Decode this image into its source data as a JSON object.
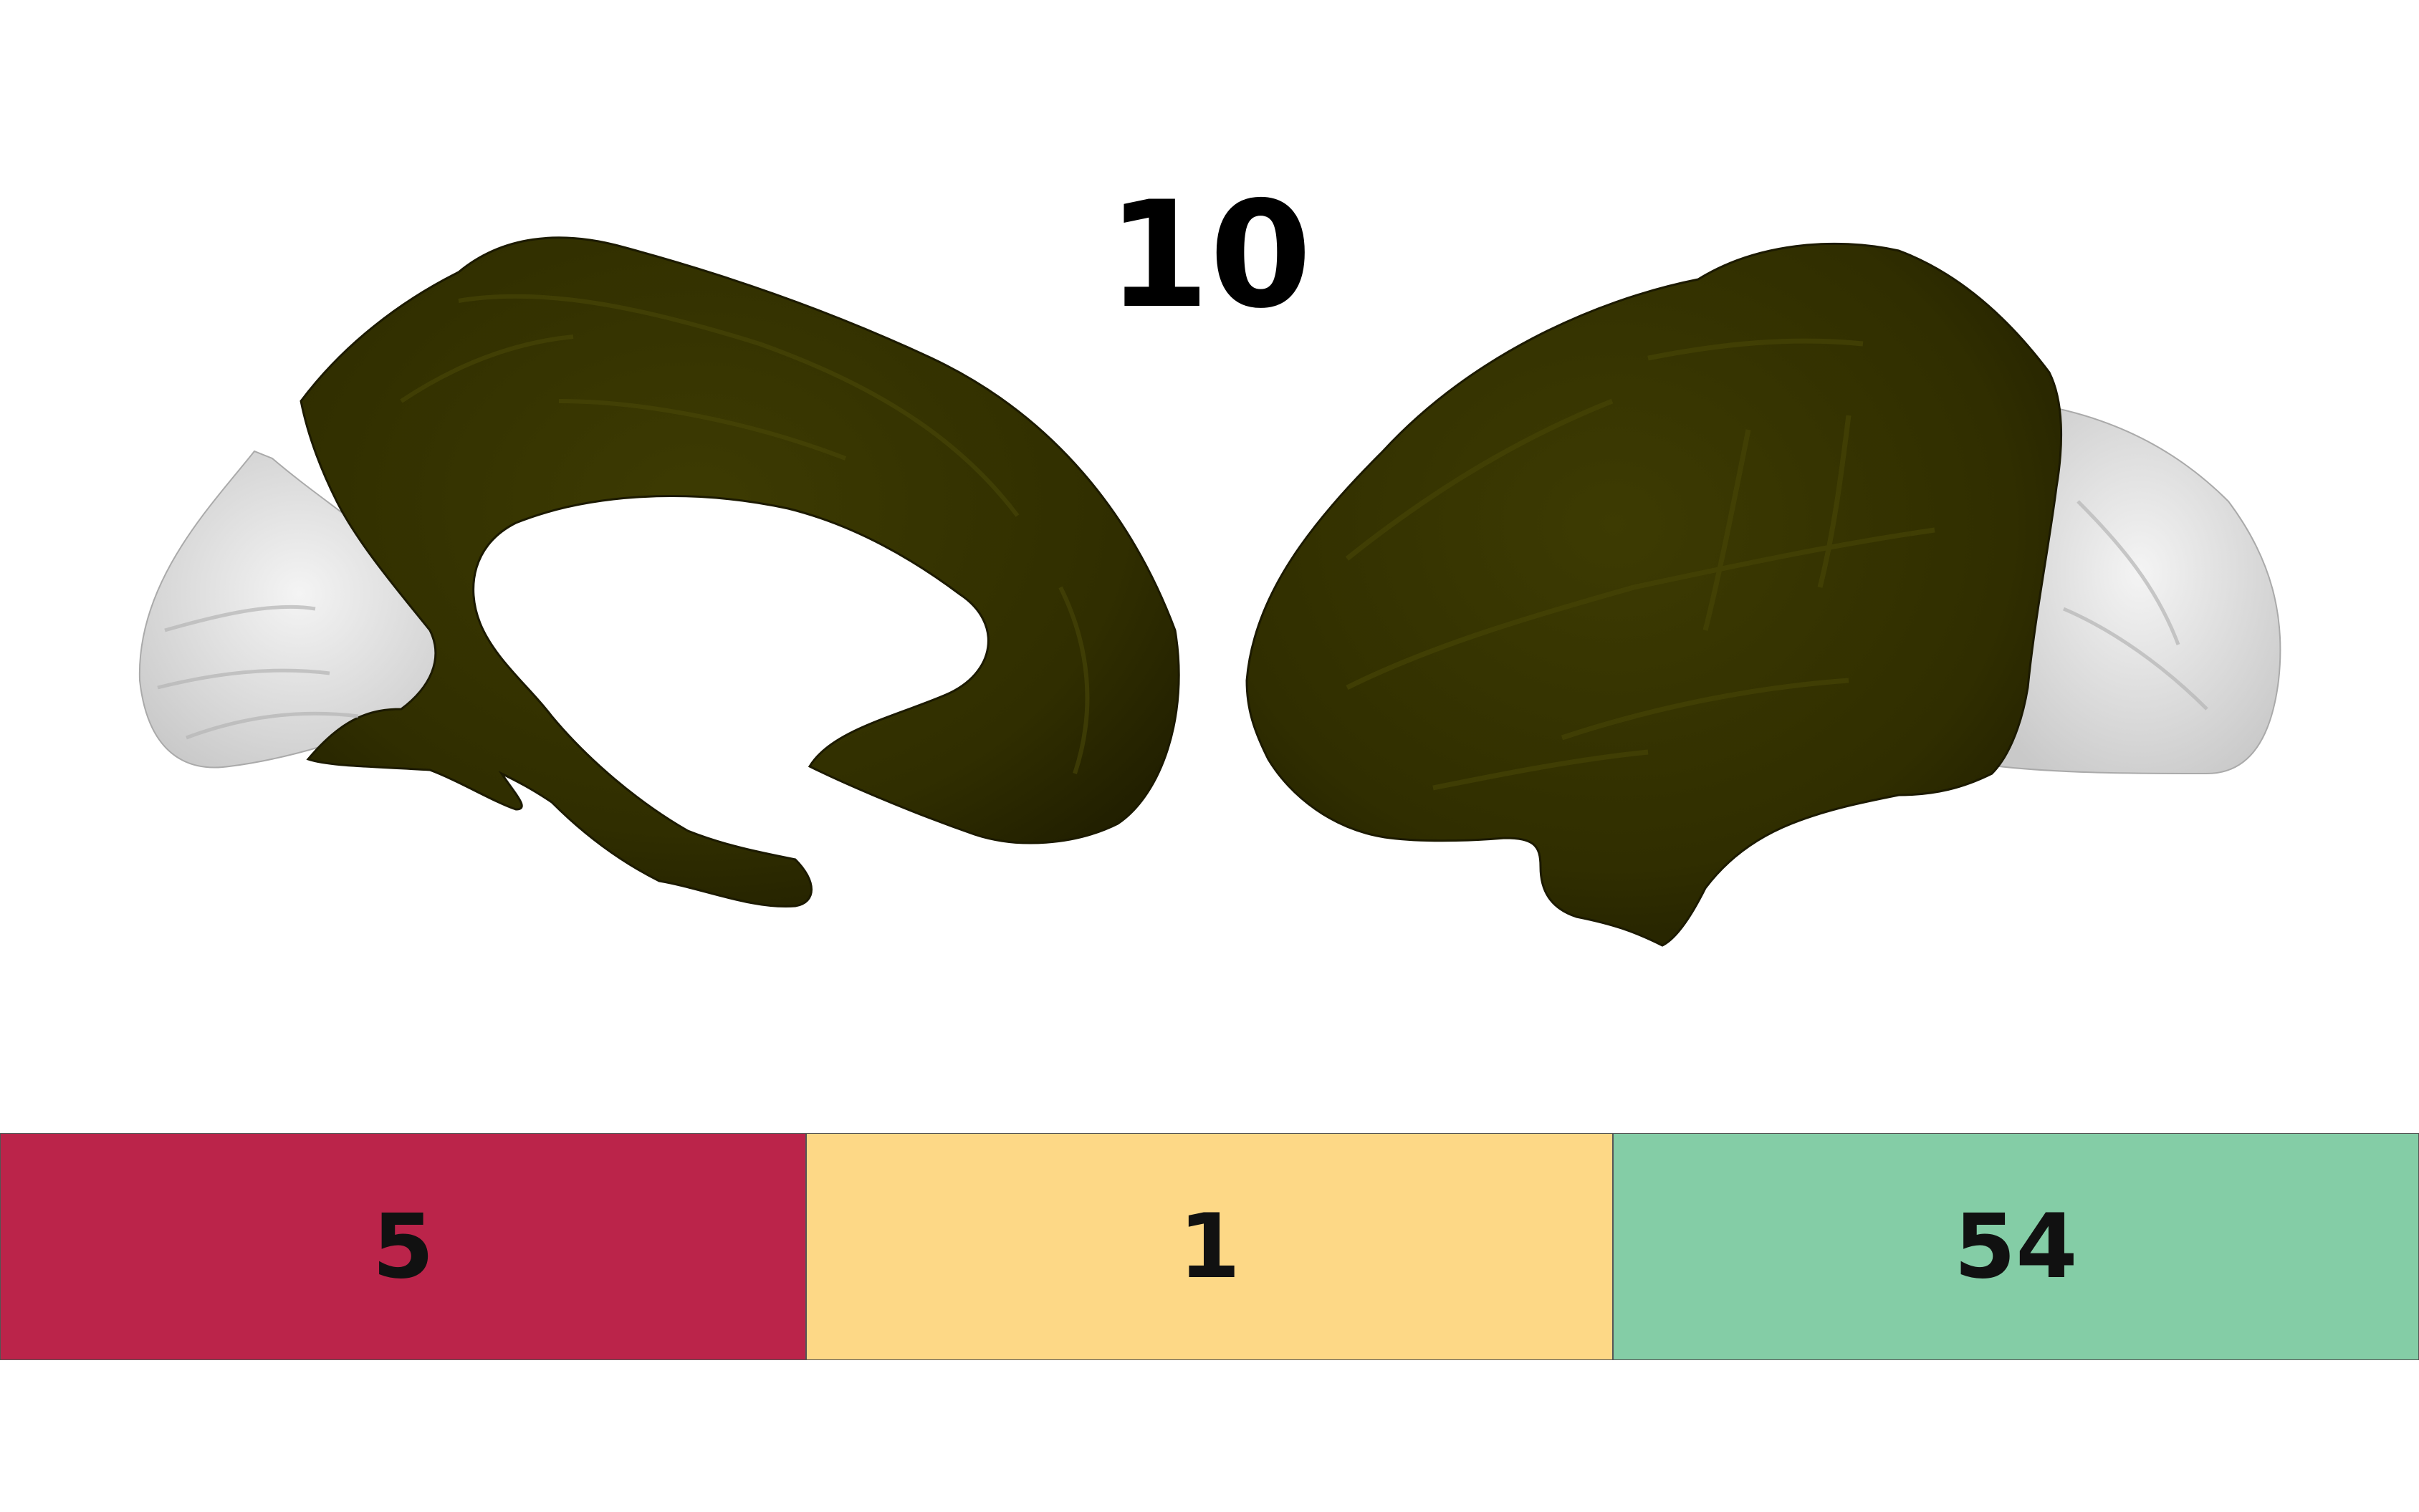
{
  "title": "10",
  "colors": {
    "region": "#333300",
    "background_cortex": "#e8e8e8",
    "background": "#ffffff"
  },
  "brain_views": [
    {
      "name": "medial-hemisphere-view"
    },
    {
      "name": "lateral-hemisphere-view"
    }
  ],
  "colorbar": [
    {
      "label": "5",
      "color": "#bb244a"
    },
    {
      "label": "1",
      "color": "#fdd886"
    },
    {
      "label": "54",
      "color": "#84cda6"
    }
  ]
}
